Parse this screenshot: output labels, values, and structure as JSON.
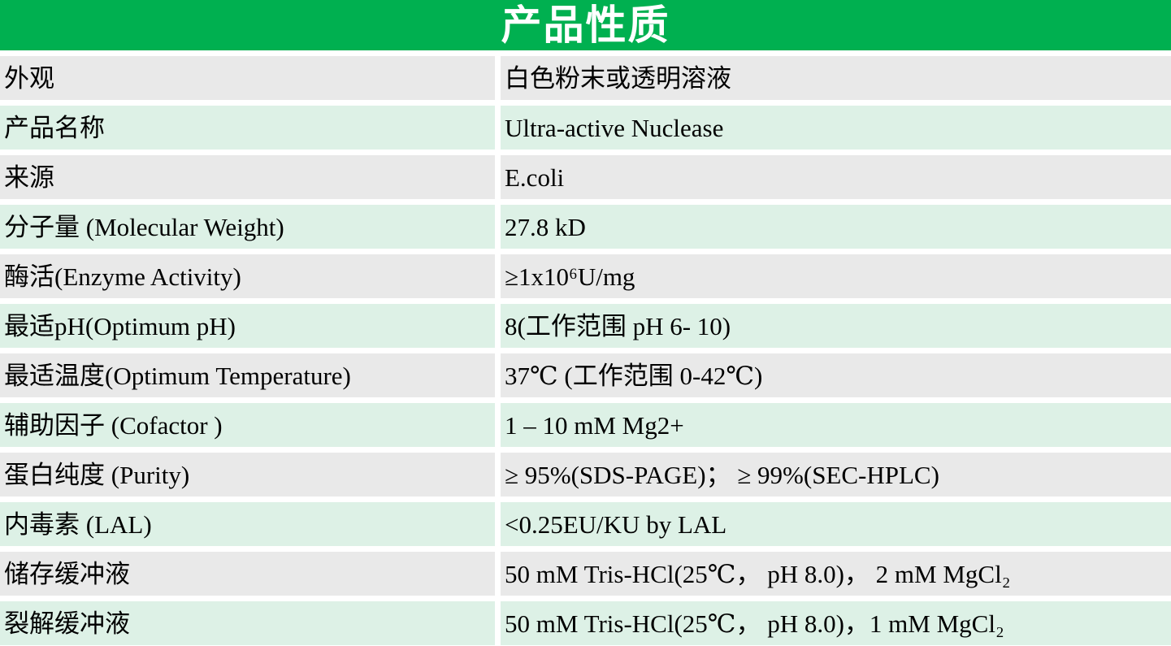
{
  "table": {
    "title": "产品性质",
    "colors": {
      "header_bg": "#00b050",
      "header_text": "#ffffff",
      "row_gray": "#e9e9e9",
      "row_green": "#ddf1e6",
      "text": "#000000"
    },
    "rows": [
      {
        "label": "外观",
        "value": "白色粉末或透明溶液"
      },
      {
        "label": "产品名称",
        "value": "Ultra-active Nuclease"
      },
      {
        "label": "来源",
        "value": "E.coli"
      },
      {
        "label": "分子量 (Molecular Weight)",
        "value": "27.8 kD"
      },
      {
        "label": "酶活(Enzyme Activity)",
        "value": "≥1x10⁶U/mg"
      },
      {
        "label": "最适pH(Optimum pH)",
        "value": "8(工作范围 pH 6- 10)"
      },
      {
        "label": "最适温度(Optimum Temperature)",
        "value": "37℃ (工作范围 0-42℃)"
      },
      {
        "label": "辅助因子 (Cofactor )",
        "value": "1 – 10 mM Mg2+"
      },
      {
        "label": "蛋白纯度 (Purity)",
        "value": "≥ 95%(SDS-PAGE)； ≥ 99%(SEC-HPLC)"
      },
      {
        "label": "内毒素 (LAL)",
        "value": "<0.25EU/KU by LAL"
      },
      {
        "label": "储存缓冲液",
        "value": "50 mM Tris-HCl(25℃， pH 8.0)， 2 mM MgCl₂"
      },
      {
        "label": "裂解缓冲液",
        "value": "50 mM Tris-HCl(25℃， pH 8.0)，1 mM MgCl₂"
      }
    ]
  }
}
